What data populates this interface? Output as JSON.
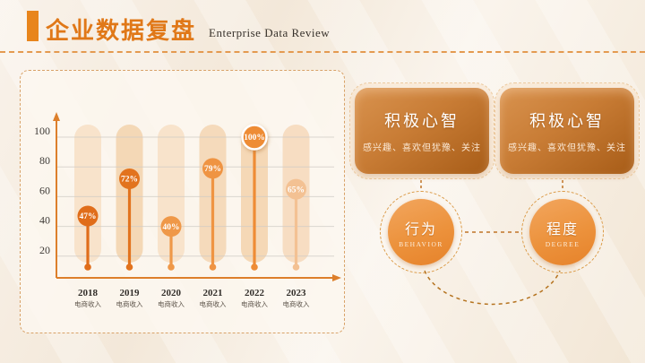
{
  "header": {
    "title_zh": "企业数据复盘",
    "title_en": "Enterprise Data Review"
  },
  "chart_data": {
    "type": "lollipop",
    "title": "",
    "categories": [
      "2018",
      "2019",
      "2020",
      "2021",
      "2022",
      "2023"
    ],
    "category_note": "电商收入",
    "values": [
      47,
      72,
      40,
      79,
      100,
      65
    ],
    "value_labels": [
      "47%",
      "72%",
      "40%",
      "79%",
      "100%",
      "65%"
    ],
    "ylim": [
      0,
      110
    ],
    "yticks": [
      20,
      40,
      60,
      80,
      100
    ],
    "grid": true,
    "legend_position": "none",
    "highlight_index": 4,
    "point_colors": [
      "#e06d1a",
      "#e2731e",
      "#ef9848",
      "#ef9443",
      "#ee8c35",
      "#f3c193"
    ],
    "capsule_colors": [
      "#f8e3cb",
      "#f4d8b6",
      "#f8e3cb",
      "#f5dabb",
      "#f5d8b6",
      "#f7ddc2"
    ]
  },
  "cards": [
    {
      "title": "积极心智",
      "subtitle": "感兴趣、喜欢但犹豫、关注"
    },
    {
      "title": "积极心智",
      "subtitle": "感兴趣、喜欢但犹豫、关注"
    }
  ],
  "nodes": [
    {
      "title": "行为",
      "subtitle": "BEHAVIOR"
    },
    {
      "title": "程度",
      "subtitle": "DEGREE"
    }
  ],
  "colors": {
    "accent": "#e8851c",
    "title_text": "#e07818",
    "panel_border": "#d8a268",
    "axis": "#dd7f2b",
    "gridline": "#cfcbc5",
    "card_gradient_start": "#d9934f",
    "card_gradient_end": "#a75c17",
    "connector_dash": "#c07427"
  }
}
